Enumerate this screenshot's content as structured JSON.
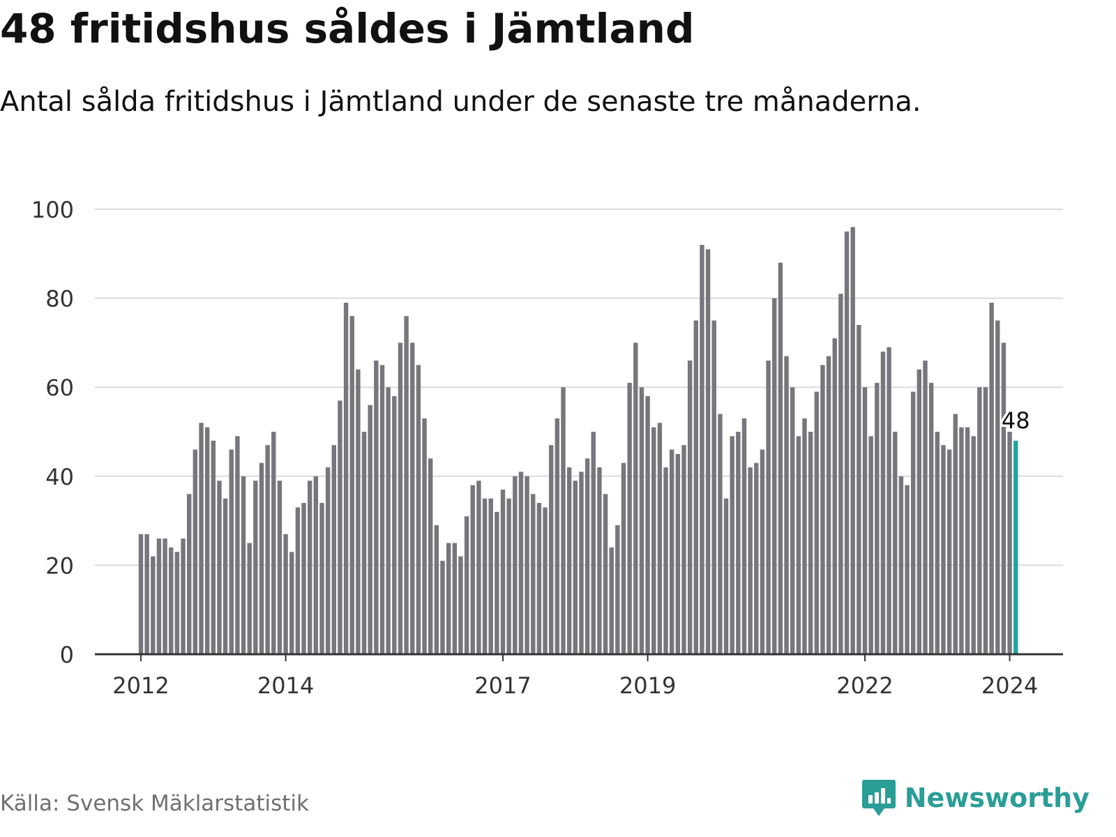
{
  "header": {
    "title": "48 fritidshus såldes i Jämtland",
    "subtitle": "Antal sålda fritidshus i Jämtland under de senaste tre månaderna."
  },
  "footer": {
    "source": "Källa: Svensk Mäklarstatistik",
    "brand": "Newsworthy",
    "brand_icon": "bar-chart-speech-bubble-icon"
  },
  "colors": {
    "bar": "#76767c",
    "highlight": "#1ea59e",
    "gridline": "#dcdcdc",
    "axis": "#333333",
    "tick_text": "#333333",
    "brand": "#2a9d97"
  },
  "chart_data": {
    "type": "bar",
    "title": "48 fritidshus såldes i Jämtland",
    "subtitle": "Antal sålda fritidshus i Jämtland under de senaste tre månaderna.",
    "xlabel": "",
    "ylabel": "",
    "ylim": [
      0,
      100
    ],
    "y_ticks": [
      0,
      20,
      40,
      60,
      80,
      100
    ],
    "grid": true,
    "x_tick_labels": [
      {
        "label": "2012",
        "index": 0
      },
      {
        "label": "2014",
        "index": 24
      },
      {
        "label": "2017",
        "index": 60
      },
      {
        "label": "2019",
        "index": 84
      },
      {
        "label": "2022",
        "index": 120
      },
      {
        "label": "2024",
        "index": 144
      }
    ],
    "highlight_index": 145,
    "highlight_label": "48",
    "values": [
      27,
      27,
      22,
      26,
      26,
      24,
      23,
      26,
      36,
      46,
      52,
      51,
      48,
      39,
      35,
      46,
      49,
      40,
      25,
      39,
      43,
      47,
      50,
      39,
      27,
      23,
      33,
      34,
      39,
      40,
      34,
      42,
      47,
      57,
      79,
      76,
      64,
      50,
      56,
      66,
      65,
      60,
      58,
      70,
      76,
      70,
      65,
      53,
      44,
      29,
      21,
      25,
      25,
      22,
      31,
      38,
      39,
      35,
      35,
      32,
      37,
      35,
      40,
      41,
      40,
      36,
      34,
      33,
      47,
      53,
      60,
      42,
      39,
      41,
      44,
      50,
      42,
      36,
      24,
      29,
      43,
      61,
      70,
      60,
      58,
      51,
      52,
      42,
      46,
      45,
      47,
      66,
      75,
      92,
      91,
      75,
      54,
      35,
      49,
      50,
      53,
      42,
      43,
      46,
      66,
      80,
      88,
      67,
      60,
      49,
      53,
      50,
      59,
      65,
      67,
      71,
      81,
      95,
      96,
      74,
      60,
      49,
      61,
      68,
      69,
      50,
      40,
      38,
      59,
      64,
      66,
      61,
      50,
      47,
      46,
      54,
      51,
      51,
      49,
      60,
      60,
      79,
      75,
      70,
      50,
      48
    ]
  }
}
